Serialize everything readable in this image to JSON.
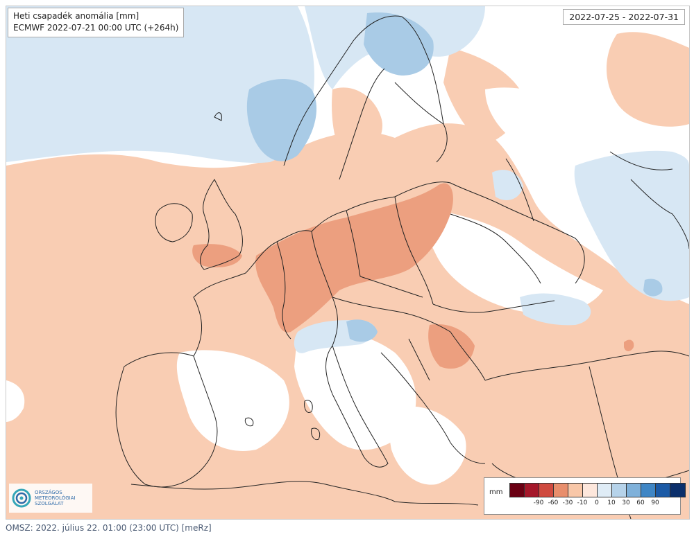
{
  "map": {
    "title": "Heti csapadék anomália [mm]",
    "subtitle": "ECMWF 2022-07-21 00:00 UTC (+264h)",
    "period": "2022-07-25 - 2022-07-31"
  },
  "logo": {
    "line1": "ORSZÁGOS",
    "line2": "METEOROLÓGIAI",
    "line3": "SZOLGÁLAT"
  },
  "legend": {
    "unit": "mm",
    "colors": [
      "#6b0013",
      "#a5172a",
      "#cf4a3f",
      "#e88e6c",
      "#f8c7a8",
      "#fde7dc",
      "#dfecf6",
      "#b6d3ea",
      "#7fb1da",
      "#3f86c5",
      "#1b5aa6",
      "#0b2f6b"
    ],
    "ticks": [
      "-90",
      "-60",
      "-30",
      "-10",
      "0",
      "10",
      "30",
      "60",
      "90"
    ]
  },
  "footer": {
    "text": "OMSZ: 2022. július 22. 01:00 (23:00 UTC) [meRz]"
  }
}
